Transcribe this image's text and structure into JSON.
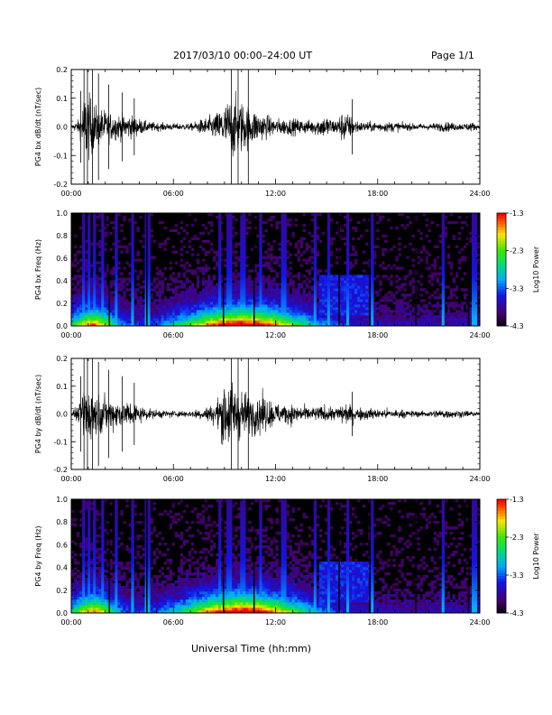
{
  "header": {
    "title": "2017/03/10   00:00–24:00 UT",
    "page": "Page 1/1"
  },
  "footer": {
    "xlabel": "Universal Time (hh:mm)"
  },
  "chart_data": [
    {
      "type": "line",
      "panel": "bx_waveform",
      "ylabel": "PG4 bx dB/dt (nT/sec)",
      "xlim": [
        0,
        24
      ],
      "ylim": [
        -0.2,
        0.2
      ],
      "xticks": [
        "00:00",
        "06:00",
        "12:00",
        "18:00",
        "24:00"
      ],
      "yticks": [
        "0.2",
        "0.1",
        "0.0",
        "-0.1",
        "-0.2"
      ],
      "series": [
        {
          "amplitude_envelope": {
            "x": [
              0,
              0.5,
              0.8,
              1.0,
              1.5,
              2.5,
              3.5,
              4.5,
              6,
              7,
              8.5,
              9,
              9.5,
              10,
              10.5,
              11,
              11.5,
              12,
              13,
              14,
              15,
              15.5,
              16,
              16.5,
              17,
              18,
              19,
              20,
              21,
              22,
              23,
              23.5,
              24
            ],
            "y": [
              0.01,
              0.05,
              0.22,
              0.2,
              0.12,
              0.08,
              0.07,
              0.03,
              0.02,
              0.02,
              0.08,
              0.14,
              0.19,
              0.16,
              0.12,
              0.09,
              0.07,
              0.05,
              0.05,
              0.04,
              0.07,
              0.04,
              0.1,
              0.06,
              0.03,
              0.03,
              0.03,
              0.02,
              0.02,
              0.03,
              0.02,
              0.03,
              0.01
            ]
          }
        }
      ]
    },
    {
      "type": "heatmap",
      "panel": "bx_spectrogram",
      "ylabel": "PG4 bx Freq (Hz)",
      "xlim": [
        0,
        24
      ],
      "ylim": [
        0,
        1.0
      ],
      "xticks": [
        "00:00",
        "06:00",
        "12:00",
        "18:00",
        "24:00"
      ],
      "yticks": [
        "1.0",
        "0.8",
        "0.6",
        "0.4",
        "0.2",
        "0.0"
      ],
      "colorbar": {
        "label": "Log10 Power",
        "range": [
          -4.3,
          -1.3
        ],
        "ticks": [
          "-1.3",
          "-2.3",
          "-3.3",
          "-4.3"
        ]
      }
    },
    {
      "type": "line",
      "panel": "by_waveform",
      "ylabel": "PG4 by dB/dt (nT/sec)",
      "xlim": [
        0,
        24
      ],
      "ylim": [
        -0.2,
        0.2
      ],
      "xticks": [
        "00:00",
        "06:00",
        "12:00",
        "18:00",
        "24:00"
      ],
      "yticks": [
        "0.2",
        "0.1",
        "0.0",
        "-0.1",
        "-0.2"
      ],
      "series": [
        {
          "amplitude_envelope": {
            "x": [
              0,
              0.5,
              0.8,
              1.0,
              1.5,
              2.5,
              3.5,
              4.5,
              6,
              7,
              8.5,
              9,
              9.5,
              10,
              10.5,
              11,
              11.5,
              12,
              13,
              14,
              15,
              15.5,
              16,
              16.5,
              17,
              18,
              19,
              20,
              21,
              22,
              23,
              23.5,
              24
            ],
            "y": [
              0.01,
              0.06,
              0.21,
              0.17,
              0.12,
              0.09,
              0.08,
              0.03,
              0.02,
              0.02,
              0.06,
              0.22,
              0.2,
              0.14,
              0.12,
              0.13,
              0.1,
              0.07,
              0.06,
              0.04,
              0.05,
              0.04,
              0.07,
              0.05,
              0.04,
              0.03,
              0.03,
              0.02,
              0.02,
              0.03,
              0.02,
              0.02,
              0.01
            ]
          }
        }
      ]
    },
    {
      "type": "heatmap",
      "panel": "by_spectrogram",
      "ylabel": "PG4 by Freq (Hz)",
      "xlim": [
        0,
        24
      ],
      "ylim": [
        0,
        1.0
      ],
      "xticks": [
        "00:00",
        "06:00",
        "12:00",
        "18:00",
        "24:00"
      ],
      "yticks": [
        "1.0",
        "0.8",
        "0.6",
        "0.4",
        "0.2",
        "0.0"
      ],
      "colorbar": {
        "label": "Log10 Power",
        "range": [
          -4.3,
          -1.3
        ],
        "ticks": [
          "-1.3",
          "-2.3",
          "-3.3",
          "-4.3"
        ]
      }
    }
  ]
}
